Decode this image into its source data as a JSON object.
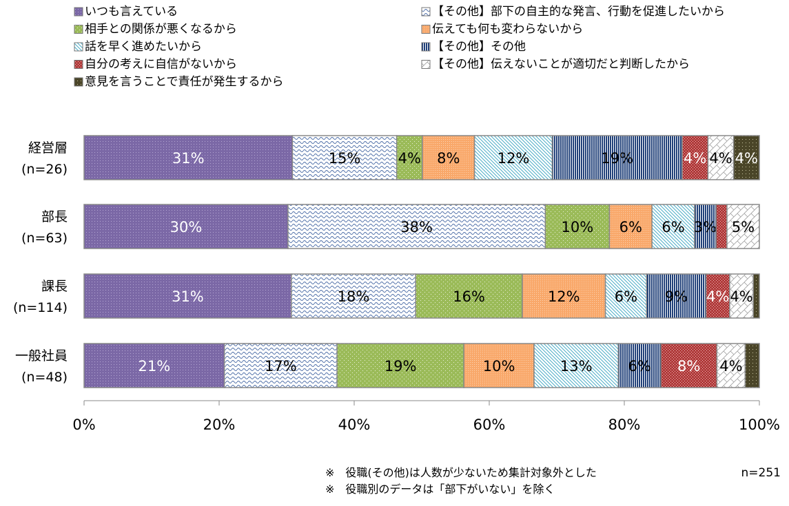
{
  "chart_data": {
    "type": "bar",
    "orientation": "horizontal",
    "stacked": "percent",
    "categories": [
      "経営層\n(n=26)",
      "部長\n(n=63)",
      "課長\n(n=114)",
      "一般社員\n(n=48)"
    ],
    "series": [
      {
        "name": "いつも言えている",
        "color": "#7b68a6",
        "values": [
          30.8,
          30.2,
          30.7,
          20.8
        ],
        "labels": [
          "31%",
          "30%",
          "31%",
          "21%"
        ],
        "label_color": "#ffffff"
      },
      {
        "name": "【その他】部下の自主的な発言、行動を促進したいから",
        "color": "#4f6fa8",
        "values": [
          15.4,
          38.1,
          18.4,
          16.7
        ],
        "labels": [
          "15%",
          "38%",
          "18%",
          "17%"
        ],
        "label_color": "#000000"
      },
      {
        "name": "相手との関係が悪くなるから",
        "color": "#9bbb59",
        "values": [
          3.8,
          9.5,
          15.8,
          18.8
        ],
        "labels": [
          "4%",
          "10%",
          "16%",
          "19%"
        ],
        "label_color": "#000000"
      },
      {
        "name": "伝えても何も変わらないから",
        "color": "#f9a86a",
        "values": [
          7.7,
          6.3,
          12.3,
          10.4
        ],
        "labels": [
          "8%",
          "6%",
          "12%",
          "10%"
        ],
        "label_color": "#000000"
      },
      {
        "name": "話を早く進めたいから",
        "color": "#4bacc6",
        "values": [
          11.5,
          6.3,
          6.1,
          12.5
        ],
        "labels": [
          "12%",
          "6%",
          "6%",
          "13%"
        ],
        "label_color": "#000000"
      },
      {
        "name": "【その他】その他",
        "color": "#1f3f78",
        "values": [
          19.2,
          3.2,
          8.8,
          6.3
        ],
        "labels": [
          "19%",
          "3%",
          "9%",
          "6%"
        ],
        "label_color": "#000000"
      },
      {
        "name": "自分の考えに自信がないから",
        "color": "#b03a3a",
        "values": [
          3.8,
          1.6,
          3.5,
          8.3
        ],
        "labels": [
          "4%",
          "",
          "4%",
          "8%"
        ],
        "label_color": "#ffffff"
      },
      {
        "name": "【その他】伝えないことが適切だと判断したから",
        "color": "#a0a0a0",
        "values": [
          3.8,
          4.8,
          3.5,
          4.2
        ],
        "labels": [
          "4%",
          "5%",
          "4%",
          "4%"
        ],
        "label_color": "#000000"
      },
      {
        "name": "意見を言うことで責任が発生するから",
        "color": "#4a4528",
        "values": [
          3.8,
          0,
          0.9,
          2.1
        ],
        "labels": [
          "4%",
          "",
          "",
          ""
        ],
        "label_color": "#ffffff"
      }
    ],
    "xlim": [
      0,
      100
    ],
    "xticks": [
      "0%",
      "20%",
      "40%",
      "60%",
      "80%",
      "100%"
    ],
    "legend_position": "top",
    "grid": false,
    "notes": [
      "※　役職(その他)は人数が少ないため集計対象外とした",
      "※　役職別のデータは「部下がいない」を除く"
    ],
    "total_n": "n=251"
  }
}
